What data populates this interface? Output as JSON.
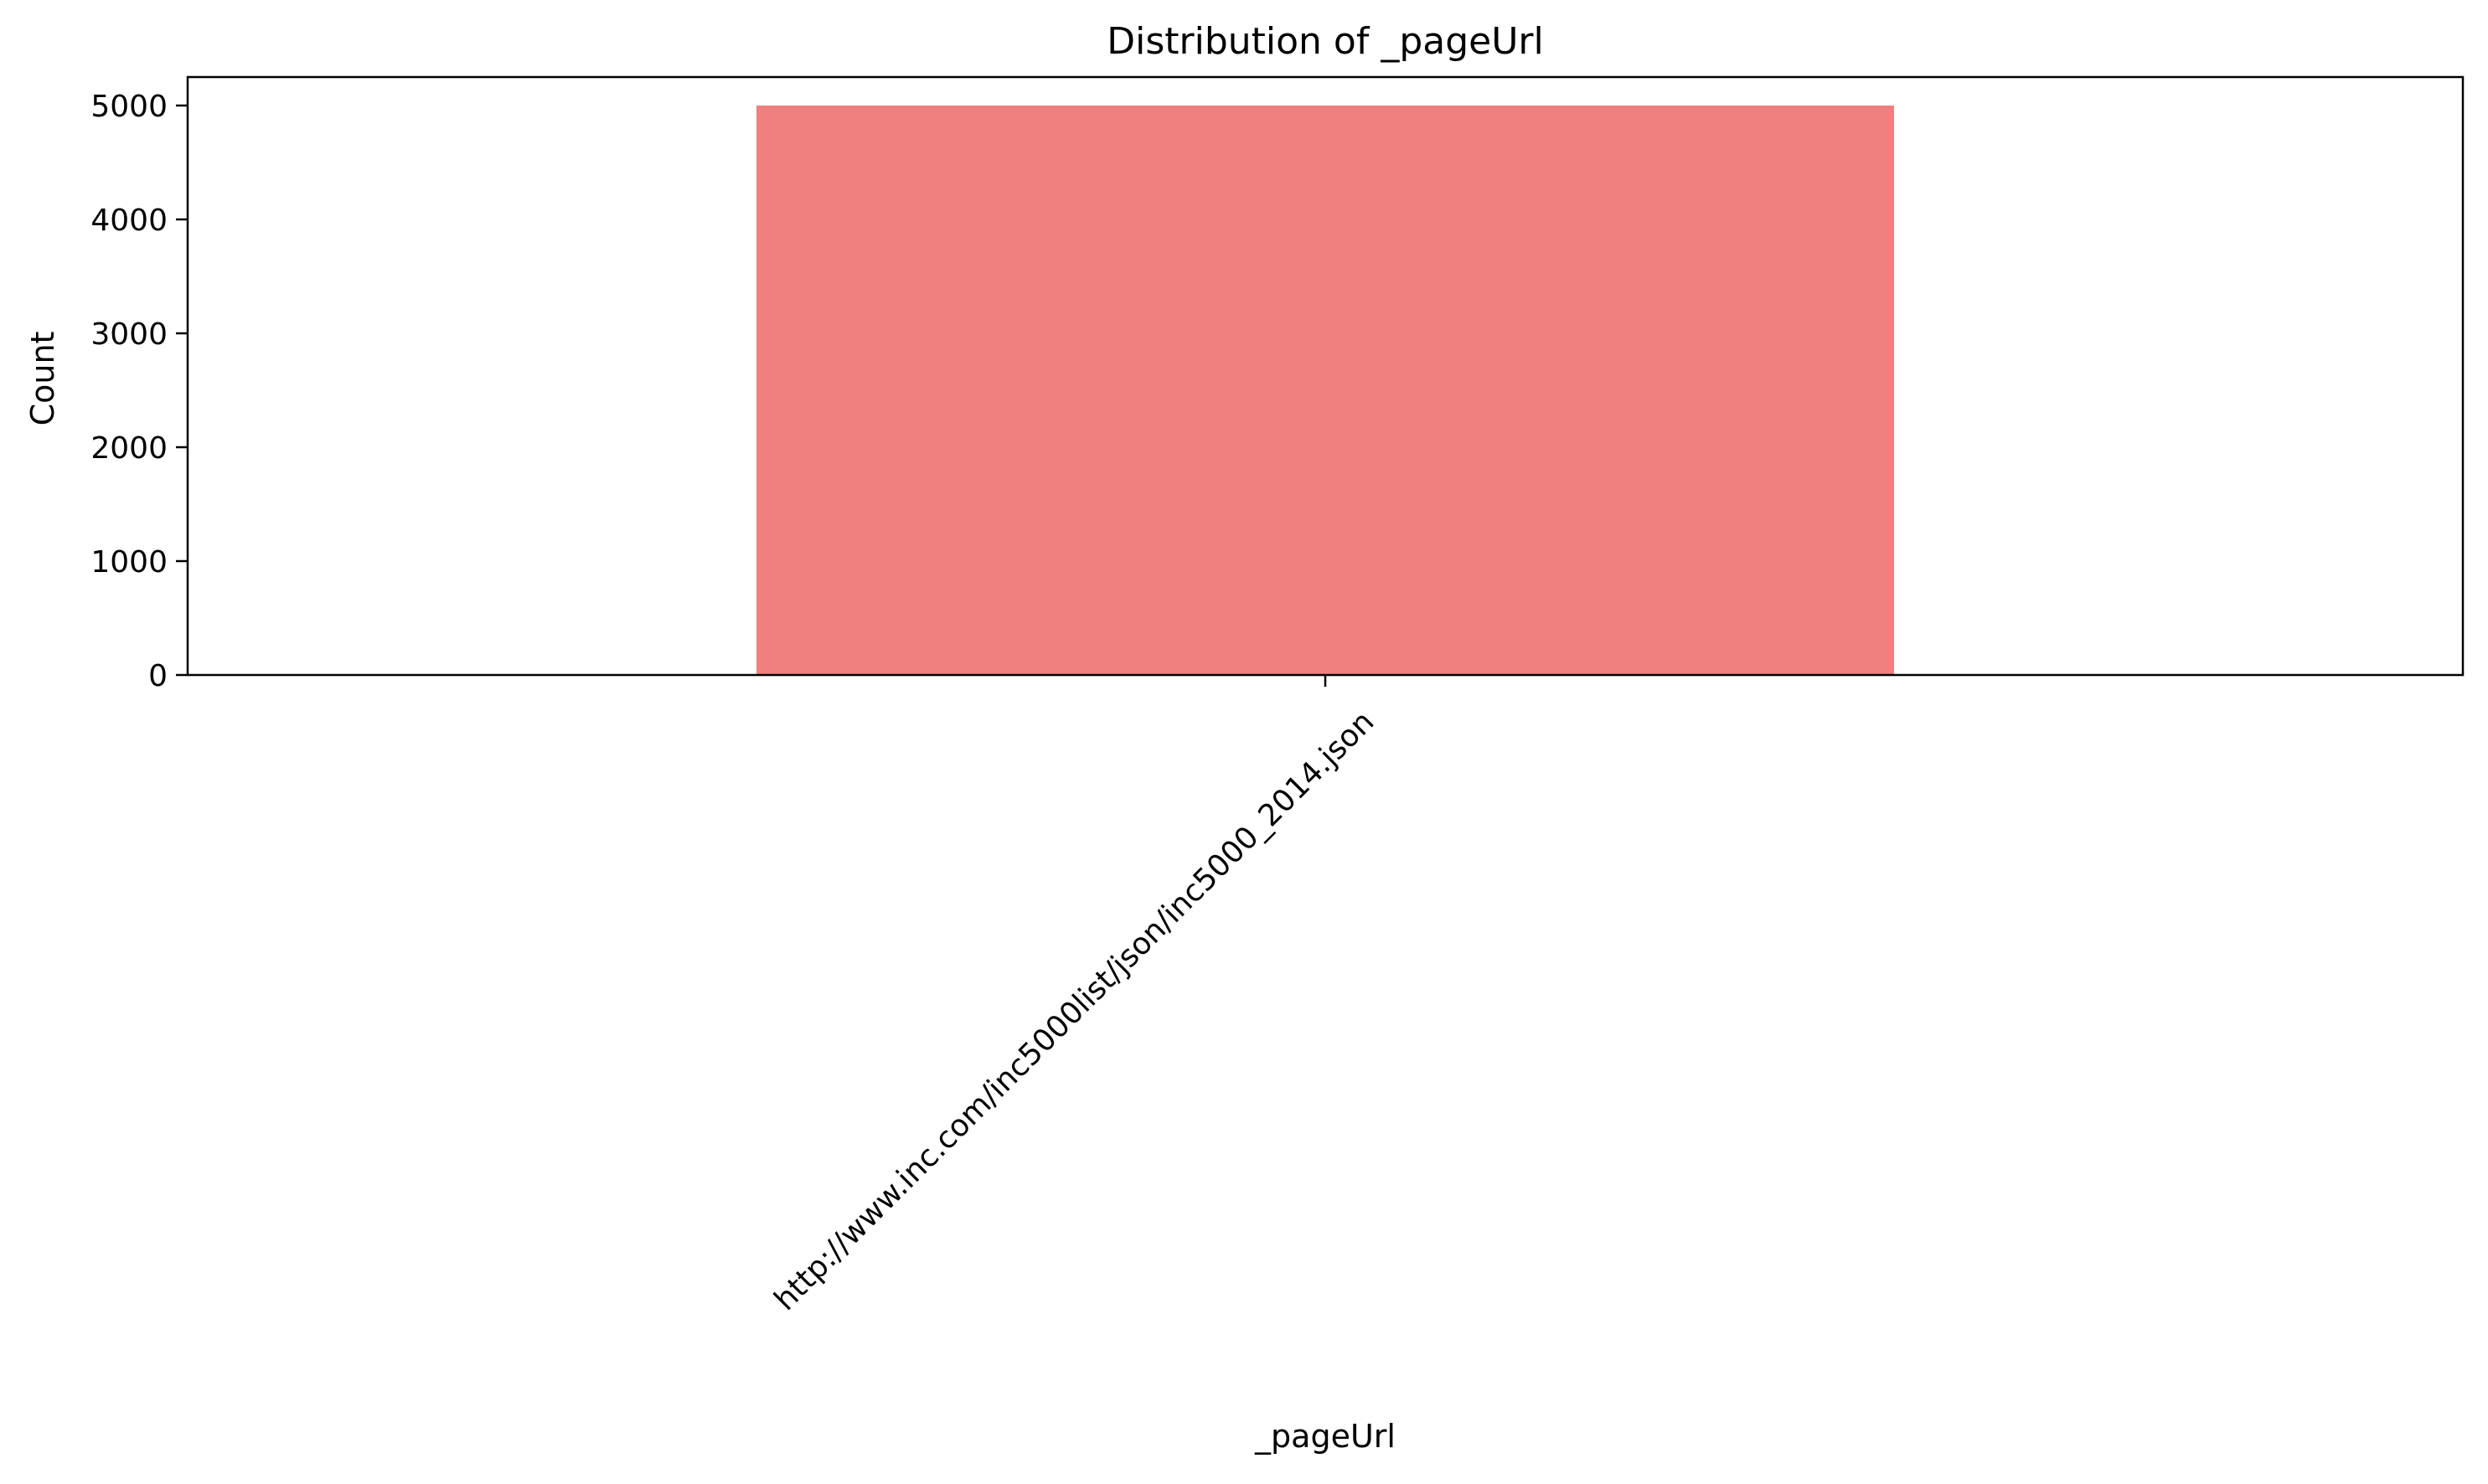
{
  "chart_data": {
    "type": "bar",
    "title": "Distribution of _pageUrl",
    "xlabel": "_pageUrl",
    "ylabel": "Count",
    "categories": [
      "http://www.inc.com/inc5000list/json/inc5000_2014.json"
    ],
    "values": [
      5000
    ],
    "ylim": [
      0,
      5250
    ],
    "yticks": [
      0,
      1000,
      2000,
      3000,
      4000,
      5000
    ],
    "grid": false,
    "legend": "none",
    "colors": {
      "bar": "#f08080",
      "axes": "#000000"
    }
  }
}
